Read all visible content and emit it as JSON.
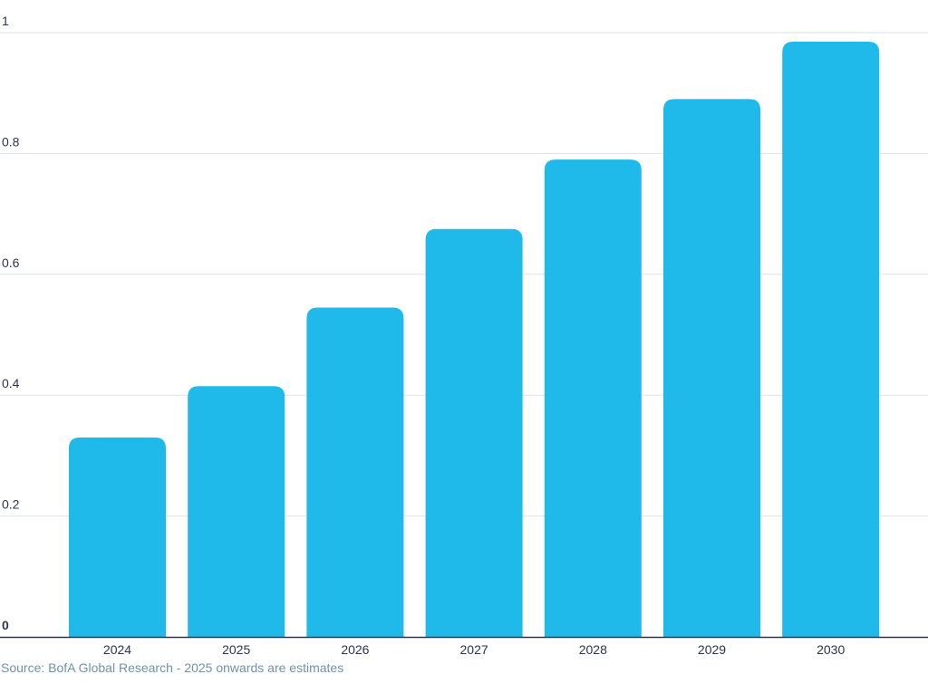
{
  "chart_data": {
    "type": "bar",
    "categories": [
      "2024",
      "2025",
      "2026",
      "2027",
      "2028",
      "2029",
      "2030"
    ],
    "values": [
      0.33,
      0.415,
      0.545,
      0.675,
      0.79,
      0.89,
      0.985
    ],
    "title": "",
    "xlabel": "",
    "ylabel": "",
    "ylim": [
      0,
      1
    ],
    "yticks": [
      {
        "value": 0,
        "label": "0"
      },
      {
        "value": 0.2,
        "label": "0.2"
      },
      {
        "value": 0.4,
        "label": "0.4"
      },
      {
        "value": 0.6,
        "label": "0.6"
      },
      {
        "value": 0.8,
        "label": "0.8"
      },
      {
        "value": 1,
        "label": "1"
      }
    ],
    "grid": true,
    "legend": "none",
    "colors": {
      "bar": "#1fb9ea",
      "grid": "#dde3ea",
      "axis": "#2b3550",
      "tick_text": "#2b3550"
    }
  },
  "source_note": "Source: BofA Global Research - 2025 onwards are estimates"
}
